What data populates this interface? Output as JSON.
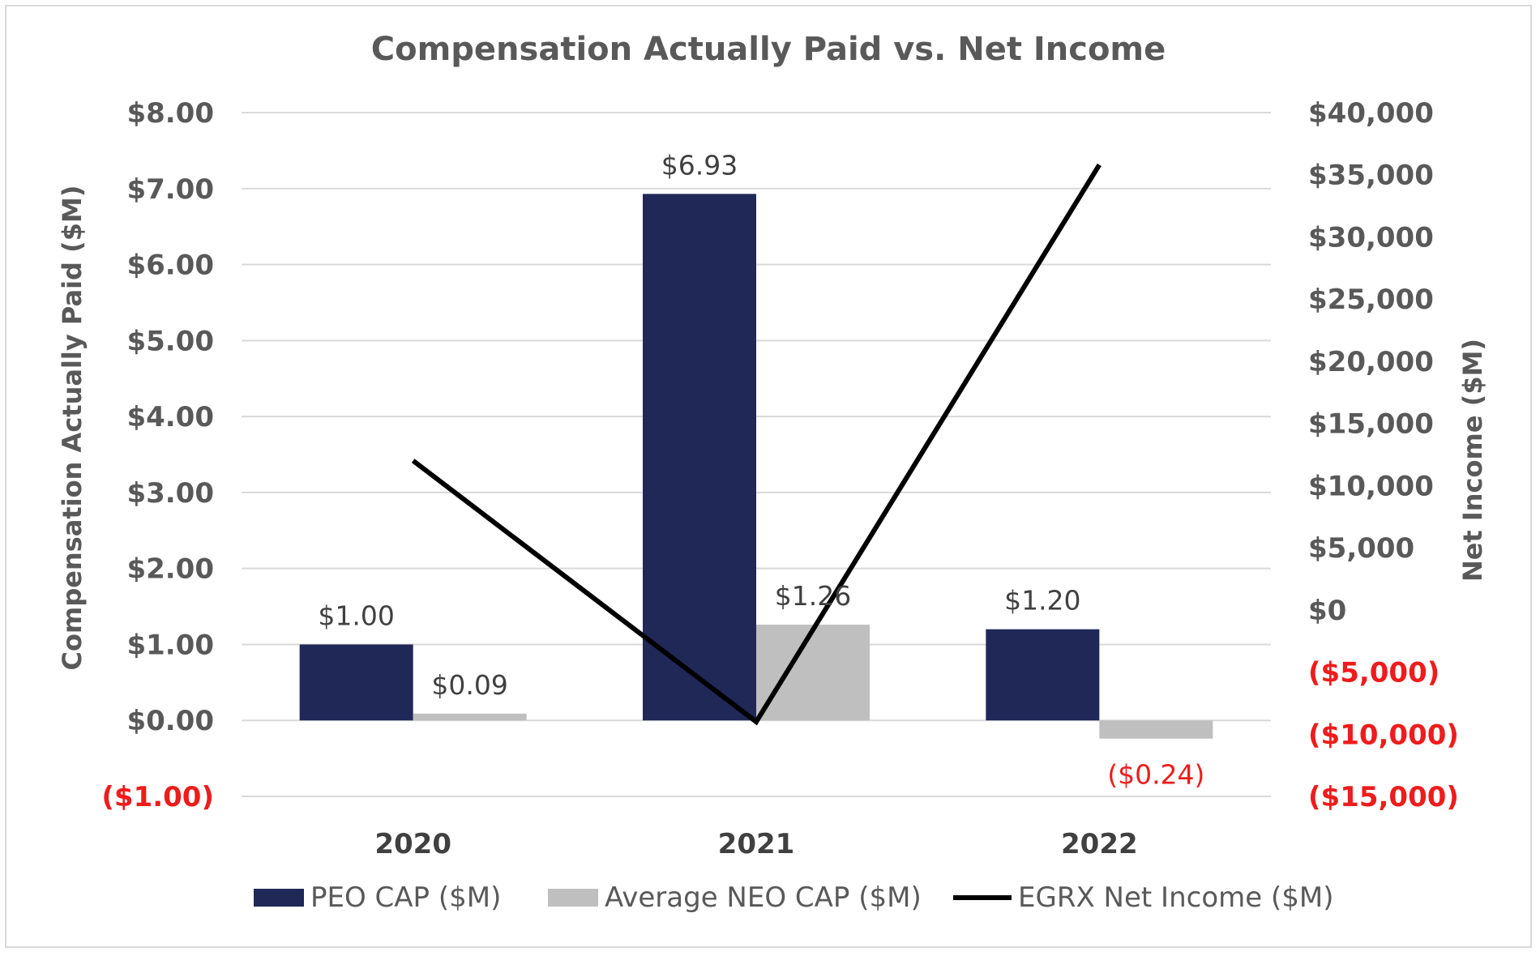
{
  "chart_data": {
    "type": "bar",
    "title": "Compensation Actually Paid vs. Net Income",
    "ylabel": "Compensation Actually Paid ($M)",
    "y2label": "Net Income ($M)",
    "categories": [
      "2020",
      "2021",
      "2022"
    ],
    "ylim": [
      -1,
      8
    ],
    "y2lim": [
      -15000,
      40000
    ],
    "yticks": [
      "($1.00)",
      "$0.00",
      "$1.00",
      "$2.00",
      "$3.00",
      "$4.00",
      "$5.00",
      "$6.00",
      "$7.00",
      "$8.00"
    ],
    "y2ticks": [
      "($15,000)",
      "($10,000)",
      "($5,000)",
      "$0",
      "$5,000",
      "$10,000",
      "$15,000",
      "$20,000",
      "$25,000",
      "$30,000",
      "$35,000",
      "$40,000"
    ],
    "grid": true,
    "legend_position": "bottom",
    "series": [
      {
        "name": "PEO CAP ($M)",
        "type": "bar",
        "axis": "left",
        "color": "#1f2857",
        "values": [
          1.0,
          6.93,
          1.2
        ],
        "labels": [
          "$1.00",
          "$6.93",
          "$1.20"
        ]
      },
      {
        "name": "Average NEO CAP ($M)",
        "type": "bar",
        "axis": "left",
        "color": "#bfbfbf",
        "values": [
          0.09,
          1.26,
          -0.24
        ],
        "labels": [
          "$0.09",
          "$1.26",
          "($0.24)"
        ]
      },
      {
        "name": "EGRX Net Income ($M)",
        "type": "line",
        "axis": "right",
        "color": "#000000",
        "values": [
          12000,
          -9000,
          35800
        ]
      }
    ],
    "colors": {
      "text": "#595959",
      "negative": "#ee1c1c",
      "grid": "#d9d9d9"
    }
  }
}
